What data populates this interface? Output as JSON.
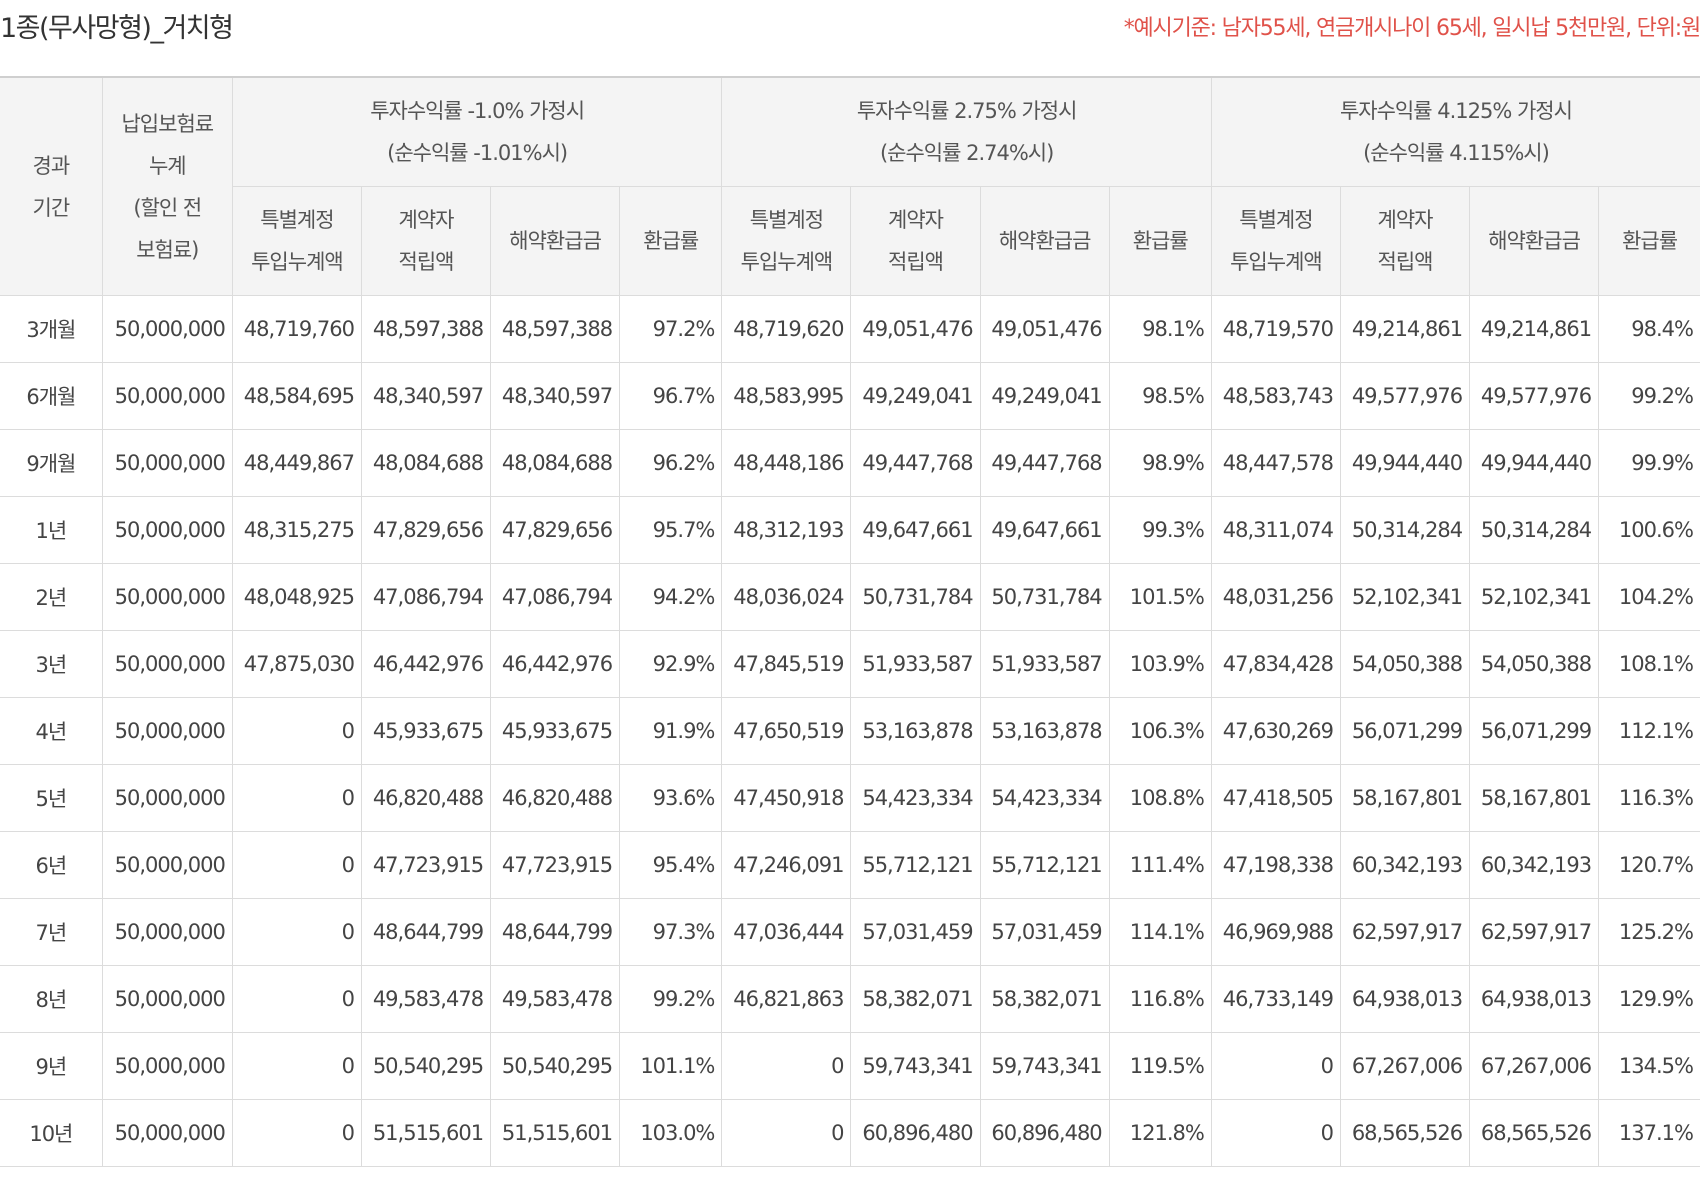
{
  "header": {
    "title": "1종(무사망형)_거치형",
    "note": "*예시기준: 남자55세, 연금개시나이 65세, 일시납 5천만원, 단위:원"
  },
  "table": {
    "col_period": [
      "경과",
      "기간"
    ],
    "col_premium": [
      "납입보험료",
      "누계",
      "(할인 전",
      "보험료)"
    ],
    "groups": [
      {
        "label": "투자수익률 -1.0% 가정시",
        "sub": "(순수익률 -1.01%시)"
      },
      {
        "label": "투자수익률 2.75% 가정시",
        "sub": "(순수익률 2.74%시)"
      },
      {
        "label": "투자수익률 4.125% 가정시",
        "sub": "(순수익률 4.115%시)"
      }
    ],
    "subcols": {
      "special": [
        "특별계정",
        "투입누계액"
      ],
      "reserve": [
        "계약자",
        "적립액"
      ],
      "surrender": "해약환급금",
      "rate": "환급률"
    },
    "rows": [
      [
        "3개월",
        "50,000,000",
        "48,719,760",
        "48,597,388",
        "48,597,388",
        "97.2%",
        "48,719,620",
        "49,051,476",
        "49,051,476",
        "98.1%",
        "48,719,570",
        "49,214,861",
        "49,214,861",
        "98.4%"
      ],
      [
        "6개월",
        "50,000,000",
        "48,584,695",
        "48,340,597",
        "48,340,597",
        "96.7%",
        "48,583,995",
        "49,249,041",
        "49,249,041",
        "98.5%",
        "48,583,743",
        "49,577,976",
        "49,577,976",
        "99.2%"
      ],
      [
        "9개월",
        "50,000,000",
        "48,449,867",
        "48,084,688",
        "48,084,688",
        "96.2%",
        "48,448,186",
        "49,447,768",
        "49,447,768",
        "98.9%",
        "48,447,578",
        "49,944,440",
        "49,944,440",
        "99.9%"
      ],
      [
        "1년",
        "50,000,000",
        "48,315,275",
        "47,829,656",
        "47,829,656",
        "95.7%",
        "48,312,193",
        "49,647,661",
        "49,647,661",
        "99.3%",
        "48,311,074",
        "50,314,284",
        "50,314,284",
        "100.6%"
      ],
      [
        "2년",
        "50,000,000",
        "48,048,925",
        "47,086,794",
        "47,086,794",
        "94.2%",
        "48,036,024",
        "50,731,784",
        "50,731,784",
        "101.5%",
        "48,031,256",
        "52,102,341",
        "52,102,341",
        "104.2%"
      ],
      [
        "3년",
        "50,000,000",
        "47,875,030",
        "46,442,976",
        "46,442,976",
        "92.9%",
        "47,845,519",
        "51,933,587",
        "51,933,587",
        "103.9%",
        "47,834,428",
        "54,050,388",
        "54,050,388",
        "108.1%"
      ],
      [
        "4년",
        "50,000,000",
        "0",
        "45,933,675",
        "45,933,675",
        "91.9%",
        "47,650,519",
        "53,163,878",
        "53,163,878",
        "106.3%",
        "47,630,269",
        "56,071,299",
        "56,071,299",
        "112.1%"
      ],
      [
        "5년",
        "50,000,000",
        "0",
        "46,820,488",
        "46,820,488",
        "93.6%",
        "47,450,918",
        "54,423,334",
        "54,423,334",
        "108.8%",
        "47,418,505",
        "58,167,801",
        "58,167,801",
        "116.3%"
      ],
      [
        "6년",
        "50,000,000",
        "0",
        "47,723,915",
        "47,723,915",
        "95.4%",
        "47,246,091",
        "55,712,121",
        "55,712,121",
        "111.4%",
        "47,198,338",
        "60,342,193",
        "60,342,193",
        "120.7%"
      ],
      [
        "7년",
        "50,000,000",
        "0",
        "48,644,799",
        "48,644,799",
        "97.3%",
        "47,036,444",
        "57,031,459",
        "57,031,459",
        "114.1%",
        "46,969,988",
        "62,597,917",
        "62,597,917",
        "125.2%"
      ],
      [
        "8년",
        "50,000,000",
        "0",
        "49,583,478",
        "49,583,478",
        "99.2%",
        "46,821,863",
        "58,382,071",
        "58,382,071",
        "116.8%",
        "46,733,149",
        "64,938,013",
        "64,938,013",
        "129.9%"
      ],
      [
        "9년",
        "50,000,000",
        "0",
        "50,540,295",
        "50,540,295",
        "101.1%",
        "0",
        "59,743,341",
        "59,743,341",
        "119.5%",
        "0",
        "67,267,006",
        "67,267,006",
        "134.5%"
      ],
      [
        "10년",
        "50,000,000",
        "0",
        "51,515,601",
        "51,515,601",
        "103.0%",
        "0",
        "60,896,480",
        "60,896,480",
        "121.8%",
        "0",
        "68,565,526",
        "68,565,526",
        "137.1%"
      ]
    ]
  }
}
